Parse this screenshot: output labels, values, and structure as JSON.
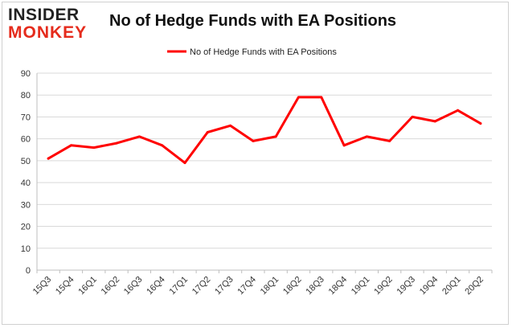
{
  "brand": {
    "line1": "INSIDER",
    "line2": "MONKEY"
  },
  "chart_data": {
    "type": "line",
    "title": "No of Hedge Funds with EA Positions",
    "categories": [
      "15Q3",
      "15Q4",
      "16Q1",
      "16Q2",
      "16Q3",
      "16Q4",
      "17Q1",
      "17Q2",
      "17Q3",
      "17Q4",
      "18Q1",
      "18Q2",
      "18Q3",
      "18Q4",
      "19Q1",
      "19Q2",
      "19Q3",
      "19Q4",
      "20Q1",
      "20Q2"
    ],
    "series": [
      {
        "name": "No of Hedge Funds with EA Positions",
        "values": [
          51,
          57,
          56,
          58,
          61,
          57,
          49,
          63,
          66,
          59,
          61,
          79,
          79,
          57,
          61,
          59,
          70,
          68,
          73,
          67
        ],
        "color": "#ff0000"
      }
    ],
    "ylim": [
      0,
      90
    ],
    "yticks": [
      0,
      10,
      20,
      30,
      40,
      50,
      60,
      70,
      80,
      90
    ],
    "grid": true,
    "legend": "top-center"
  }
}
